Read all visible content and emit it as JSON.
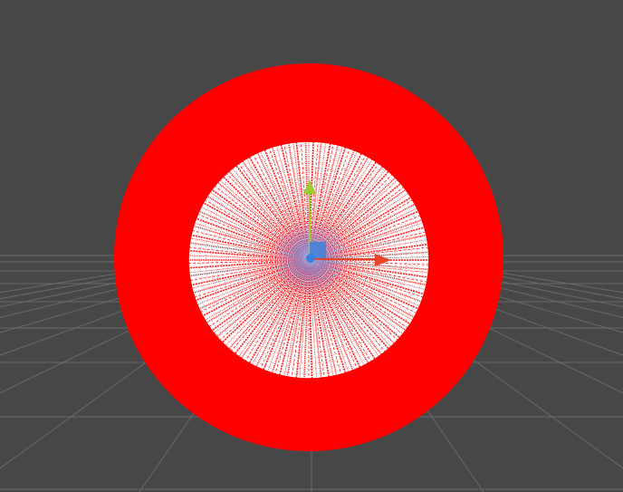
{
  "scene": {
    "background_color": "#474747",
    "grid_color": "#6a6a6a",
    "object": {
      "name": "ring-mesh",
      "fill_color": "#ff0000",
      "inner_wire_color": "#ff1a1a",
      "inner_bg_color": "#ffffff"
    },
    "gizmo": {
      "name": "move-tool-gizmo",
      "y_axis_color": "#9acd32",
      "x_axis_color": "#e8462a",
      "center_color": "#3a7fd9",
      "glow_color": "#6aa8ff"
    }
  }
}
